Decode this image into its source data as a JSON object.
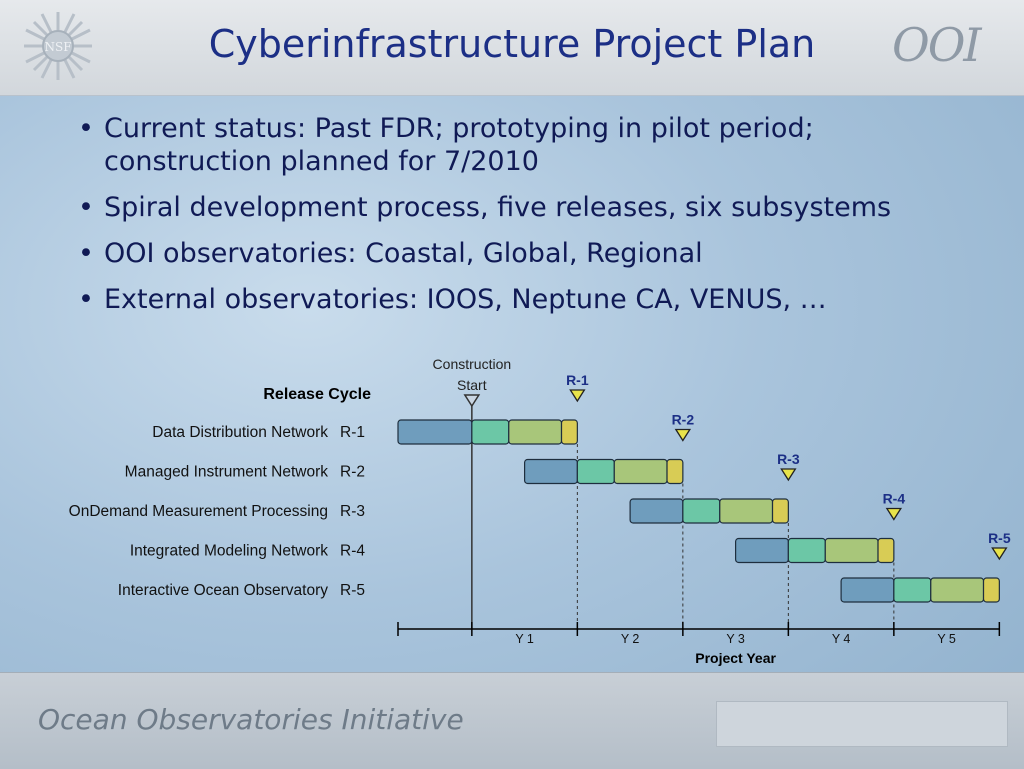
{
  "title": "Cyberinfrastructure Project Plan",
  "logos": {
    "left": "NSF",
    "right": "OOI"
  },
  "bullets": [
    "Current status: Past FDR; prototyping in pilot period; construction planned for 7/2010",
    "Spiral development process, five releases, six subsystems",
    "OOI observatories: Coastal, Global, Regional",
    "External observatories: IOOS, Neptune CA, VENUS, …"
  ],
  "bullet_glyph": "•",
  "chart": {
    "heading": "Release Cycle",
    "construction_label_line1": "Construction",
    "construction_label_line2": "Start",
    "construction_start_year": 0.7,
    "x_axis_title": "Project Year",
    "years": [
      "Y 1",
      "Y 2",
      "Y 3",
      "Y 4",
      "Y 5"
    ],
    "x_range": [
      0,
      5.7
    ],
    "phase_colors": [
      "#6f9dbd",
      "#6cc7a6",
      "#a8c67a",
      "#d8cc55"
    ],
    "rows": [
      {
        "name": "Data Distribution Network",
        "release": "R-1",
        "start": 0.0,
        "phases": [
          0.7,
          0.35,
          0.5,
          0.15
        ],
        "marker": 1.7
      },
      {
        "name": "Managed Instrument Network",
        "release": "R-2",
        "start": 1.2,
        "phases": [
          0.5,
          0.35,
          0.5,
          0.15
        ],
        "marker": 2.7
      },
      {
        "name": "OnDemand Measurement Processing",
        "release": "R-3",
        "start": 2.2,
        "phases": [
          0.5,
          0.35,
          0.5,
          0.15
        ],
        "marker": 3.7
      },
      {
        "name": "Integrated Modeling Network",
        "release": "R-4",
        "start": 3.2,
        "phases": [
          0.5,
          0.35,
          0.5,
          0.15
        ],
        "marker": 4.7
      },
      {
        "name": "Interactive Ocean Observatory",
        "release": "R-5",
        "start": 4.2,
        "phases": [
          0.5,
          0.35,
          0.5,
          0.15
        ],
        "marker": 5.7
      }
    ]
  },
  "footer": {
    "text": "Ocean Observatories Initiative"
  }
}
